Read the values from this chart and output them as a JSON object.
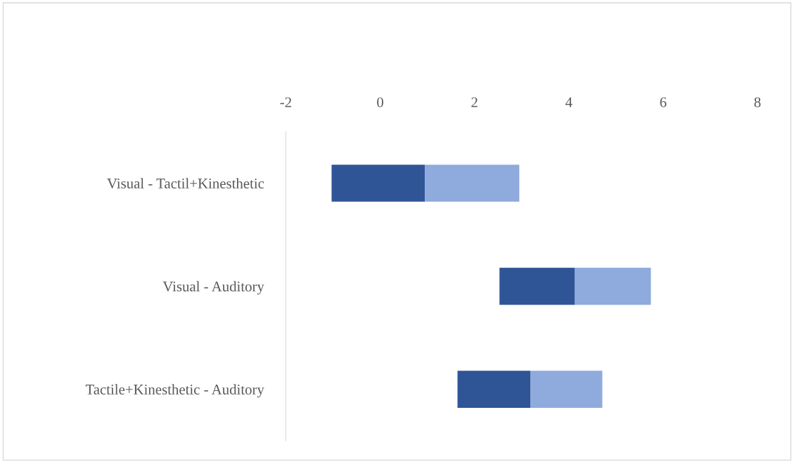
{
  "chart_data": {
    "type": "bar",
    "orientation": "horizontal",
    "categories": [
      "Visual - Tactil+Kinesthetic",
      "Visual - Auditory",
      "Tactile+Kinesthetic - Auditory"
    ],
    "series": [
      {
        "color": "#2f5597",
        "base": [
          -1.03,
          2.53,
          1.64
        ],
        "values": [
          1.98,
          1.6,
          1.55
        ]
      },
      {
        "color": "#8faadc",
        "base": [
          0.95,
          4.13,
          3.19
        ],
        "values": [
          2.0,
          1.61,
          1.52
        ]
      }
    ],
    "xlim": [
      -2,
      8
    ],
    "xticks": [
      -2,
      0,
      2,
      4,
      6,
      8
    ],
    "grid": false,
    "legend": false
  }
}
